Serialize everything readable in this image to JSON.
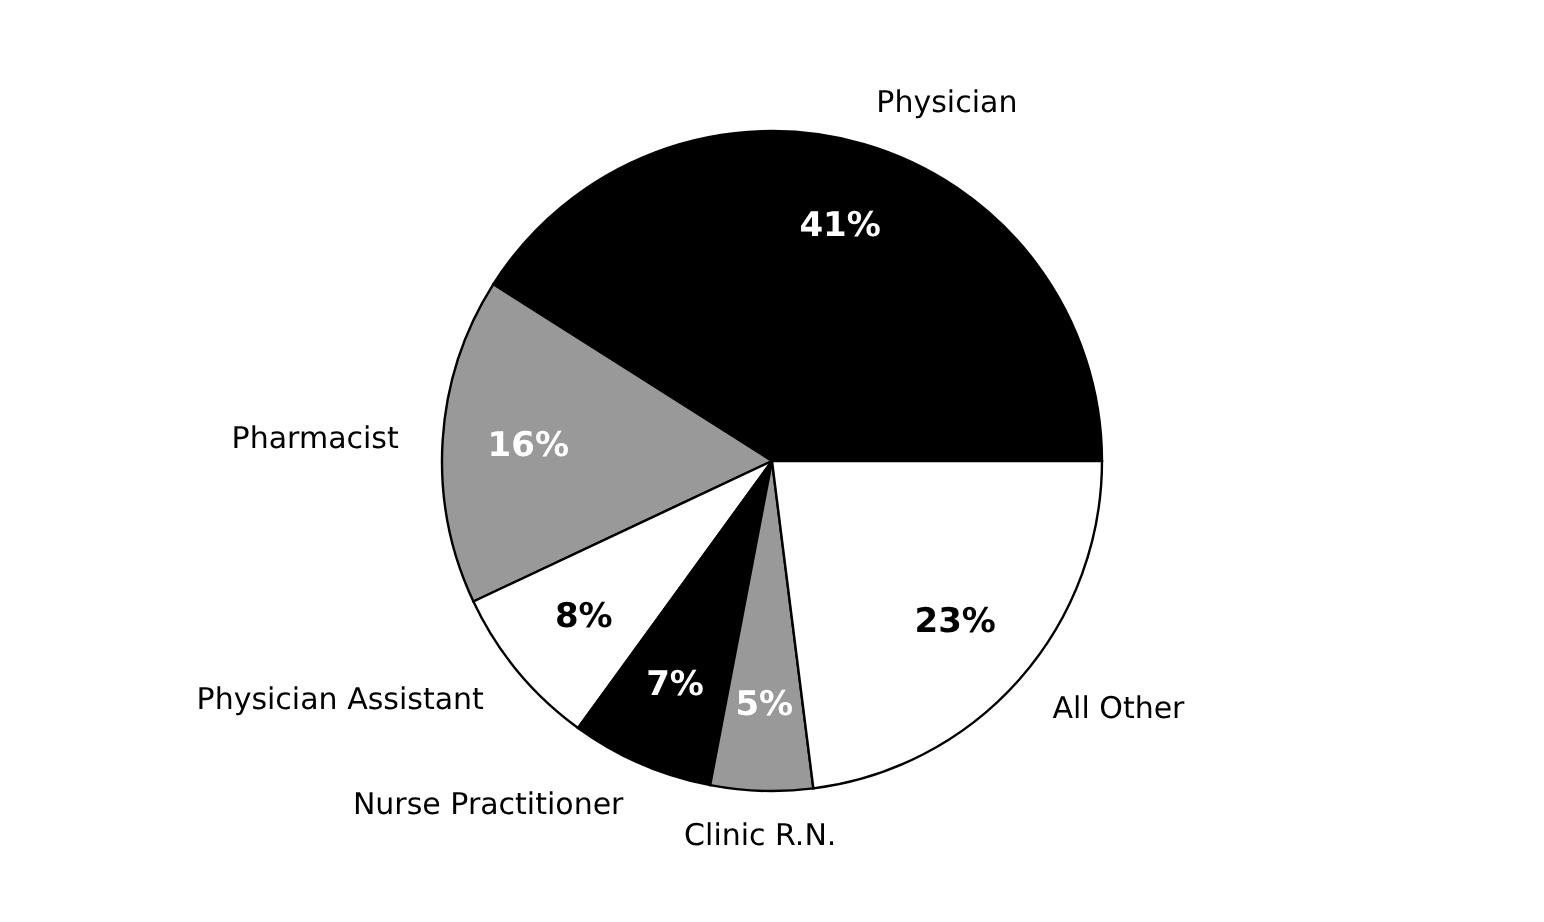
{
  "chart_data": {
    "type": "pie",
    "categories": [
      "Physician",
      "Pharmacist",
      "Physician Assistant",
      "Nurse Practitioner",
      "Clinic R.N.",
      "All Other"
    ],
    "values": [
      41,
      16,
      8,
      7,
      5,
      23
    ],
    "value_labels": [
      "41%",
      "16%",
      "8%",
      "7%",
      "5%",
      "23%"
    ],
    "colors": [
      "#000000",
      "#999999",
      "#ffffff",
      "#000000",
      "#999999",
      "#ffffff"
    ],
    "legend": false
  }
}
